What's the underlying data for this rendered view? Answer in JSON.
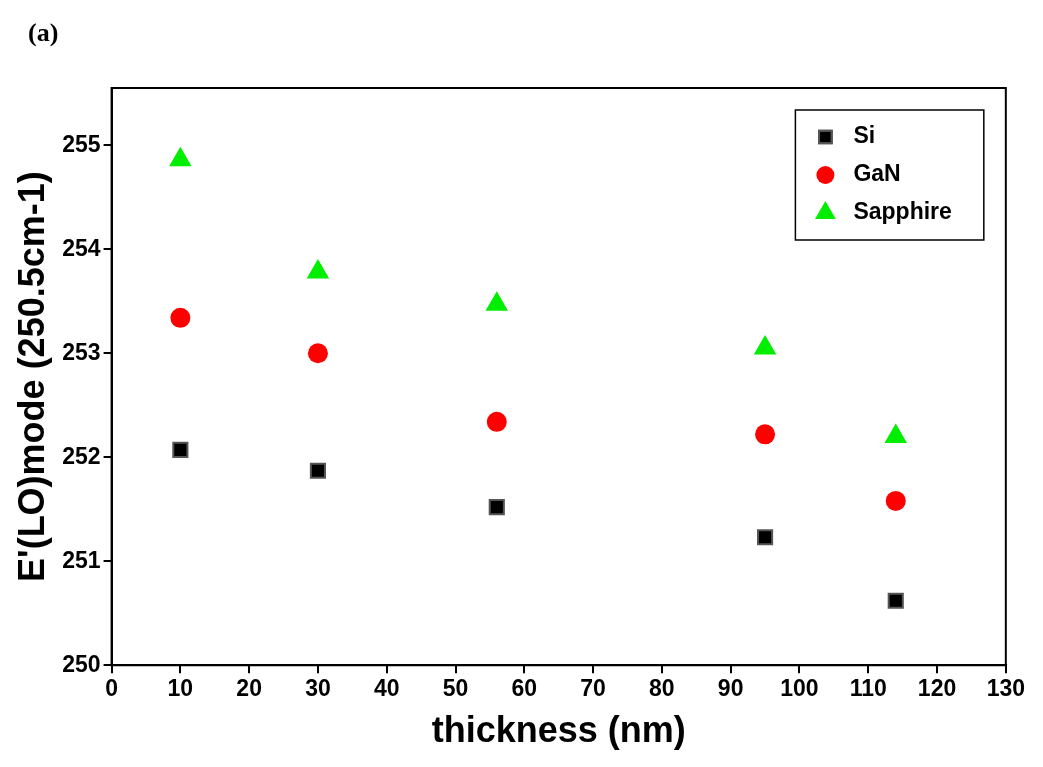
{
  "chart_data": {
    "type": "scatter",
    "xlabel": "thickness (nm)",
    "ylabel": "E'(LO)mode (250.5cm-1)",
    "annotations": [
      "(a)"
    ],
    "xlim": [
      0,
      130
    ],
    "xticks": [
      0,
      10,
      20,
      30,
      40,
      50,
      60,
      70,
      80,
      90,
      100,
      110,
      120,
      130
    ],
    "ylim": [
      250,
      255.55
    ],
    "yticks": [
      250,
      251,
      252,
      253,
      254,
      255
    ],
    "grid": false,
    "legend": "top right",
    "series": [
      {
        "name": "Si",
        "color": "#000000",
        "marker": "square",
        "x": [
          10,
          30,
          56,
          95,
          114
        ],
        "values": [
          252.07,
          251.87,
          251.52,
          251.23,
          250.62
        ]
      },
      {
        "name": "GaN",
        "color": "#ff0000",
        "marker": "circle",
        "x": [
          10,
          30,
          56,
          95,
          114
        ],
        "values": [
          253.34,
          253.0,
          252.34,
          252.22,
          251.58
        ]
      },
      {
        "name": "Sapphire",
        "color": "#00ee00",
        "marker": "triangle",
        "x": [
          10,
          30,
          56,
          95,
          114
        ],
        "values": [
          254.86,
          253.78,
          253.47,
          253.05,
          252.2
        ]
      }
    ]
  }
}
